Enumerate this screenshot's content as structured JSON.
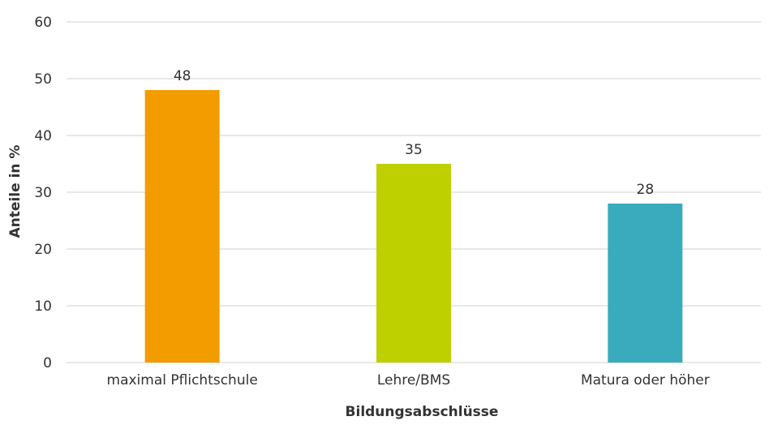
{
  "chart_data": {
    "type": "bar",
    "categories": [
      "maximal Pflichtschule",
      "Lehre/BMS",
      "Matura oder höher"
    ],
    "values": [
      48,
      35,
      28
    ],
    "data_labels": [
      "48",
      "35",
      "28"
    ],
    "colors": [
      "#f39c00",
      "#bfd000",
      "#3aabbd"
    ],
    "title": "",
    "xlabel": "Bildungsabschlüsse",
    "ylabel": "Anteile in %",
    "ylim": [
      0,
      60
    ],
    "yticks": [
      0,
      10,
      20,
      30,
      40,
      50,
      60
    ],
    "grid": true
  }
}
